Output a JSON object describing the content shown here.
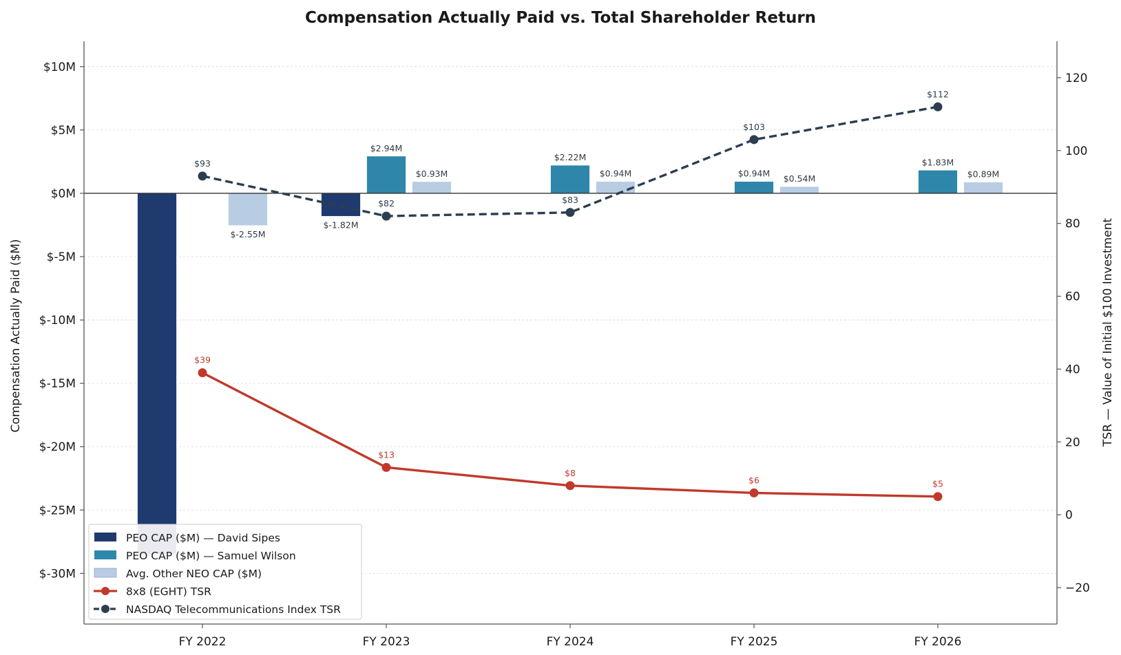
{
  "chart_data": {
    "type": "bar",
    "title": "Compensation Actually Paid vs. Total Shareholder Return",
    "ylabel": "Compensation Actually Paid ($M)",
    "y2label": "TSR — Value of Initial $100 Investment",
    "categories": [
      "FY 2022",
      "FY 2023",
      "FY 2024",
      "FY 2025",
      "FY 2026"
    ],
    "ylim": [
      -34,
      12
    ],
    "y2lim": [
      -30,
      130
    ],
    "yticks": [
      10,
      5,
      0,
      -5,
      -10,
      -15,
      -20,
      -25,
      -30
    ],
    "ytick_labels": [
      "$10M",
      "$5M",
      "$0M",
      "$-5M",
      "$-10M",
      "$-15M",
      "$-20M",
      "$-25M",
      "$-30M"
    ],
    "y2ticks": [
      120,
      100,
      80,
      60,
      40,
      20,
      0,
      -20
    ],
    "y2tick_labels": [
      "120",
      "100",
      "80",
      "60",
      "40",
      "20",
      "0",
      "−20"
    ],
    "grid": true,
    "legend_position": "bottom-left",
    "bar_series": [
      {
        "name": "PEO CAP ($M) — David Sipes",
        "color": "#1f3a6e",
        "values": [
          -28.5,
          -1.82,
          0,
          0,
          0
        ],
        "labels": [
          "",
          "$-1.82M",
          "",
          "",
          ""
        ]
      },
      {
        "name": "PEO CAP ($M) — Samuel Wilson",
        "color": "#2e86ab",
        "values": [
          0,
          2.94,
          2.22,
          0.94,
          1.83
        ],
        "labels": [
          "",
          "$2.94M",
          "$2.22M",
          "$0.94M",
          "$1.83M"
        ]
      },
      {
        "name": "Avg. Other NEO CAP ($M)",
        "color": "#b8cce4",
        "values": [
          -2.55,
          0.93,
          0.94,
          0.54,
          0.89
        ],
        "labels": [
          "$-2.55M",
          "$0.93M",
          "$0.94M",
          "$0.54M",
          "$0.89M"
        ]
      }
    ],
    "line_series": [
      {
        "name": "8x8 (EGHT) TSR",
        "color": "#c0392b",
        "style": "solid",
        "values": [
          39,
          13,
          8,
          6,
          5
        ],
        "labels": [
          "$39",
          "$13",
          "$8",
          "$6",
          "$5"
        ]
      },
      {
        "name": "NASDAQ Telecommunications Index TSR",
        "color": "#2c3e50",
        "style": "dashed",
        "values": [
          93,
          82,
          83,
          103,
          112
        ],
        "labels": [
          "$93",
          "$82",
          "$83",
          "$103",
          "$112"
        ]
      }
    ]
  }
}
